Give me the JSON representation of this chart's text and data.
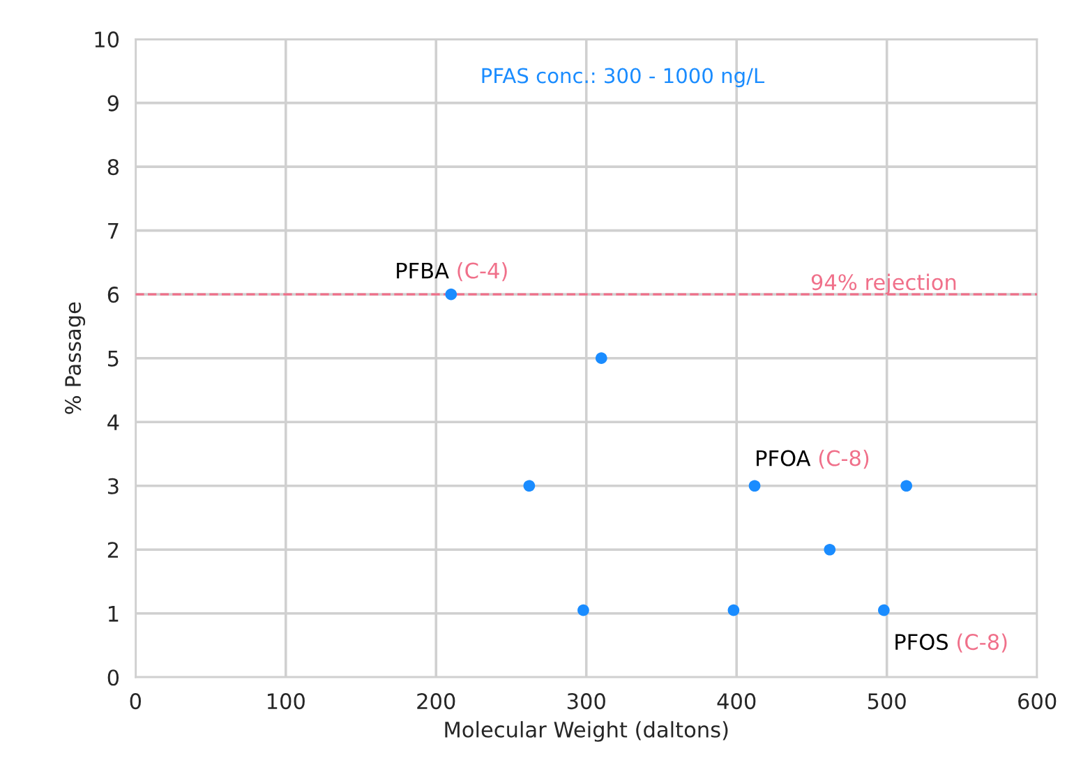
{
  "chart_data": {
    "type": "scatter",
    "xlabel": "Molecular Weight (daltons)",
    "ylabel": "% Passage",
    "x": [
      210,
      310,
      262,
      412,
      513,
      462,
      298,
      398,
      498
    ],
    "values": [
      6,
      5,
      3,
      3,
      3,
      2,
      1.05,
      1.05,
      1.05
    ],
    "color": "#1a8cff",
    "marker": "circle",
    "xlim": [
      0,
      600
    ],
    "xticks": [
      0,
      100,
      200,
      300,
      400,
      500,
      600
    ],
    "ylim": [
      0,
      10
    ],
    "yticks": [
      0,
      1,
      2,
      3,
      4,
      5,
      6,
      7,
      8,
      9,
      10
    ],
    "grid": true,
    "ref_lines": [
      {
        "axis": "y",
        "value": 6,
        "label": "94% rejection",
        "color": "#f0708a",
        "line_style": "dashed"
      }
    ],
    "annotations": [
      "PFAS conc.: 300 - 1000 ng/L",
      {
        "text": "PFBA (C-4)",
        "x": 210,
        "y": 6
      },
      {
        "text": "PFOA (C-8)",
        "x": 412,
        "y": 3
      },
      {
        "text": "PFOS (C-8)",
        "x": 498,
        "y": 1.05
      }
    ]
  }
}
